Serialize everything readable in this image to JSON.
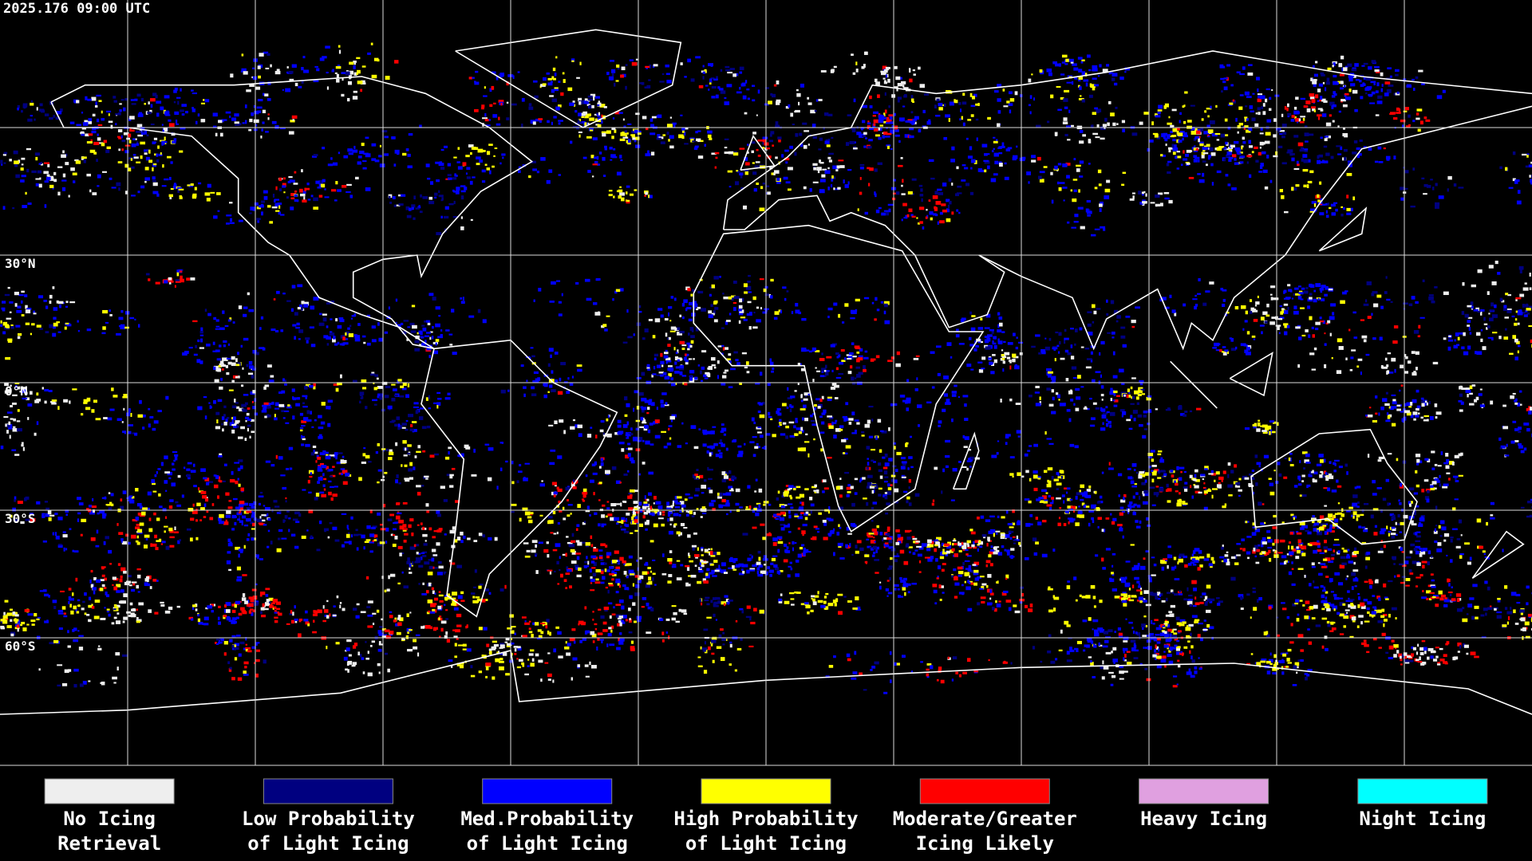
{
  "timestamp": "2025.176 09:00 UTC",
  "latitude_labels": [
    "30°N",
    "0°N",
    "30°S",
    "60°S"
  ],
  "legend": [
    {
      "label": [
        "No Icing",
        "Retrieval"
      ],
      "color": "#eeeeee"
    },
    {
      "label": [
        "Low Probability",
        "of Light Icing"
      ],
      "color": "#000080"
    },
    {
      "label": [
        "Med.Probability",
        "of Light Icing"
      ],
      "color": "#0000ff"
    },
    {
      "label": [
        "High Probability",
        "of Light Icing"
      ],
      "color": "#ffff00"
    },
    {
      "label": [
        "Moderate/Greater",
        "Icing Likely"
      ],
      "color": "#ff0000"
    },
    {
      "label": [
        "Heavy Icing"
      ],
      "color": "#e0a0e0"
    },
    {
      "label": [
        "Night Icing"
      ],
      "color": "#00ffff"
    }
  ]
}
